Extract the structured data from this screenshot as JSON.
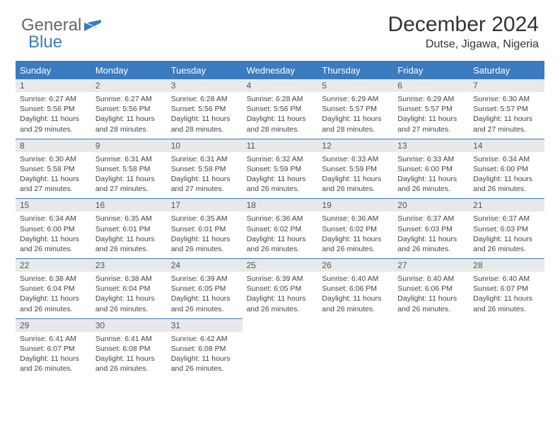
{
  "brand": {
    "part1": "General",
    "part2": "Blue"
  },
  "title": "December 2024",
  "location": "Dutse, Jigawa, Nigeria",
  "colors": {
    "header_bg": "#3b7bbf",
    "header_text": "#ffffff",
    "daynum_bg": "#e9e9e9",
    "text": "#444444",
    "page_bg": "#ffffff"
  },
  "weekdays": [
    "Sunday",
    "Monday",
    "Tuesday",
    "Wednesday",
    "Thursday",
    "Friday",
    "Saturday"
  ],
  "days": [
    {
      "n": "1",
      "sunrise": "Sunrise: 6:27 AM",
      "sunset": "Sunset: 5:56 PM",
      "daylight": "Daylight: 11 hours and 29 minutes."
    },
    {
      "n": "2",
      "sunrise": "Sunrise: 6:27 AM",
      "sunset": "Sunset: 5:56 PM",
      "daylight": "Daylight: 11 hours and 28 minutes."
    },
    {
      "n": "3",
      "sunrise": "Sunrise: 6:28 AM",
      "sunset": "Sunset: 5:56 PM",
      "daylight": "Daylight: 11 hours and 28 minutes."
    },
    {
      "n": "4",
      "sunrise": "Sunrise: 6:28 AM",
      "sunset": "Sunset: 5:56 PM",
      "daylight": "Daylight: 11 hours and 28 minutes."
    },
    {
      "n": "5",
      "sunrise": "Sunrise: 6:29 AM",
      "sunset": "Sunset: 5:57 PM",
      "daylight": "Daylight: 11 hours and 28 minutes."
    },
    {
      "n": "6",
      "sunrise": "Sunrise: 6:29 AM",
      "sunset": "Sunset: 5:57 PM",
      "daylight": "Daylight: 11 hours and 27 minutes."
    },
    {
      "n": "7",
      "sunrise": "Sunrise: 6:30 AM",
      "sunset": "Sunset: 5:57 PM",
      "daylight": "Daylight: 11 hours and 27 minutes."
    },
    {
      "n": "8",
      "sunrise": "Sunrise: 6:30 AM",
      "sunset": "Sunset: 5:58 PM",
      "daylight": "Daylight: 11 hours and 27 minutes."
    },
    {
      "n": "9",
      "sunrise": "Sunrise: 6:31 AM",
      "sunset": "Sunset: 5:58 PM",
      "daylight": "Daylight: 11 hours and 27 minutes."
    },
    {
      "n": "10",
      "sunrise": "Sunrise: 6:31 AM",
      "sunset": "Sunset: 5:58 PM",
      "daylight": "Daylight: 11 hours and 27 minutes."
    },
    {
      "n": "11",
      "sunrise": "Sunrise: 6:32 AM",
      "sunset": "Sunset: 5:59 PM",
      "daylight": "Daylight: 11 hours and 26 minutes."
    },
    {
      "n": "12",
      "sunrise": "Sunrise: 6:33 AM",
      "sunset": "Sunset: 5:59 PM",
      "daylight": "Daylight: 11 hours and 26 minutes."
    },
    {
      "n": "13",
      "sunrise": "Sunrise: 6:33 AM",
      "sunset": "Sunset: 6:00 PM",
      "daylight": "Daylight: 11 hours and 26 minutes."
    },
    {
      "n": "14",
      "sunrise": "Sunrise: 6:34 AM",
      "sunset": "Sunset: 6:00 PM",
      "daylight": "Daylight: 11 hours and 26 minutes."
    },
    {
      "n": "15",
      "sunrise": "Sunrise: 6:34 AM",
      "sunset": "Sunset: 6:00 PM",
      "daylight": "Daylight: 11 hours and 26 minutes."
    },
    {
      "n": "16",
      "sunrise": "Sunrise: 6:35 AM",
      "sunset": "Sunset: 6:01 PM",
      "daylight": "Daylight: 11 hours and 26 minutes."
    },
    {
      "n": "17",
      "sunrise": "Sunrise: 6:35 AM",
      "sunset": "Sunset: 6:01 PM",
      "daylight": "Daylight: 11 hours and 26 minutes."
    },
    {
      "n": "18",
      "sunrise": "Sunrise: 6:36 AM",
      "sunset": "Sunset: 6:02 PM",
      "daylight": "Daylight: 11 hours and 26 minutes."
    },
    {
      "n": "19",
      "sunrise": "Sunrise: 6:36 AM",
      "sunset": "Sunset: 6:02 PM",
      "daylight": "Daylight: 11 hours and 26 minutes."
    },
    {
      "n": "20",
      "sunrise": "Sunrise: 6:37 AM",
      "sunset": "Sunset: 6:03 PM",
      "daylight": "Daylight: 11 hours and 26 minutes."
    },
    {
      "n": "21",
      "sunrise": "Sunrise: 6:37 AM",
      "sunset": "Sunset: 6:03 PM",
      "daylight": "Daylight: 11 hours and 26 minutes."
    },
    {
      "n": "22",
      "sunrise": "Sunrise: 6:38 AM",
      "sunset": "Sunset: 6:04 PM",
      "daylight": "Daylight: 11 hours and 26 minutes."
    },
    {
      "n": "23",
      "sunrise": "Sunrise: 6:38 AM",
      "sunset": "Sunset: 6:04 PM",
      "daylight": "Daylight: 11 hours and 26 minutes."
    },
    {
      "n": "24",
      "sunrise": "Sunrise: 6:39 AM",
      "sunset": "Sunset: 6:05 PM",
      "daylight": "Daylight: 11 hours and 26 minutes."
    },
    {
      "n": "25",
      "sunrise": "Sunrise: 6:39 AM",
      "sunset": "Sunset: 6:05 PM",
      "daylight": "Daylight: 11 hours and 26 minutes."
    },
    {
      "n": "26",
      "sunrise": "Sunrise: 6:40 AM",
      "sunset": "Sunset: 6:06 PM",
      "daylight": "Daylight: 11 hours and 26 minutes."
    },
    {
      "n": "27",
      "sunrise": "Sunrise: 6:40 AM",
      "sunset": "Sunset: 6:06 PM",
      "daylight": "Daylight: 11 hours and 26 minutes."
    },
    {
      "n": "28",
      "sunrise": "Sunrise: 6:40 AM",
      "sunset": "Sunset: 6:07 PM",
      "daylight": "Daylight: 11 hours and 26 minutes."
    },
    {
      "n": "29",
      "sunrise": "Sunrise: 6:41 AM",
      "sunset": "Sunset: 6:07 PM",
      "daylight": "Daylight: 11 hours and 26 minutes."
    },
    {
      "n": "30",
      "sunrise": "Sunrise: 6:41 AM",
      "sunset": "Sunset: 6:08 PM",
      "daylight": "Daylight: 11 hours and 26 minutes."
    },
    {
      "n": "31",
      "sunrise": "Sunrise: 6:42 AM",
      "sunset": "Sunset: 6:08 PM",
      "daylight": "Daylight: 11 hours and 26 minutes."
    }
  ],
  "trailing_blanks": 4
}
